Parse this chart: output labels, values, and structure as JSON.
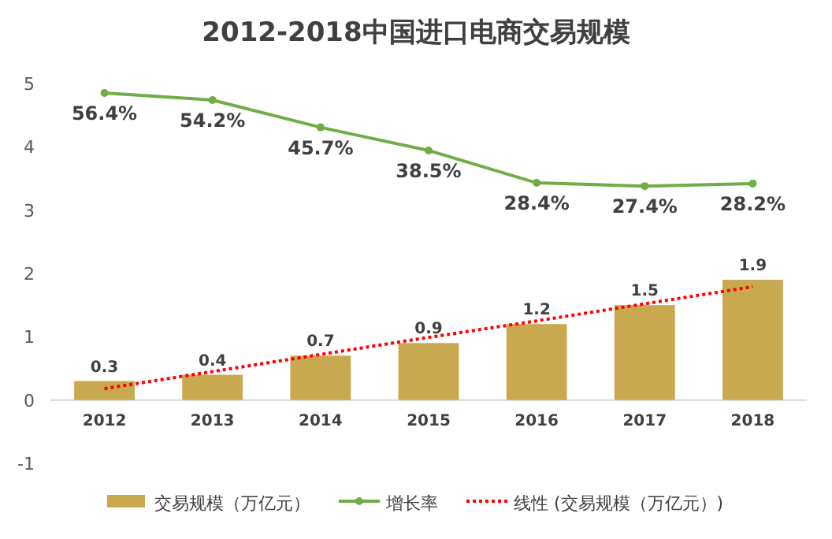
{
  "chart_data": {
    "type": "bar",
    "title": "2012-2018中国进口电商交易规模",
    "categories": [
      "2012",
      "2013",
      "2014",
      "2015",
      "2016",
      "2017",
      "2018"
    ],
    "ylim": [
      -1,
      5
    ],
    "yticks": [
      -1,
      0,
      1,
      2,
      3,
      4,
      5
    ],
    "grid": false,
    "legend": "bottom",
    "series": [
      {
        "name": "交易规模（万亿元）",
        "color": "#c9a94f",
        "values": [
          0.3,
          0.4,
          0.7,
          0.9,
          1.2,
          1.5,
          1.9
        ],
        "value_labels": [
          "0.3",
          "0.4",
          "0.7",
          "0.9",
          "1.2",
          "1.5",
          "1.9"
        ]
      },
      {
        "name": "增长率",
        "type": "line",
        "axis": "y2",
        "color": "#70ad47",
        "marker": "circle",
        "values": [
          56.4,
          54.2,
          45.7,
          38.5,
          28.4,
          27.4,
          28.2
        ],
        "value_labels": [
          "56.4%",
          "54.2%",
          "45.7%",
          "38.5%",
          "28.4%",
          "27.4%",
          "28.2%"
        ]
      },
      {
        "name": "线性 (交易规模（万亿元）)",
        "type": "line",
        "color": "#ff0000",
        "line_style": "dotted",
        "marker": "none",
        "values": [
          0.18,
          0.45,
          0.72,
          0.99,
          1.25,
          1.52,
          1.79
        ]
      }
    ]
  }
}
